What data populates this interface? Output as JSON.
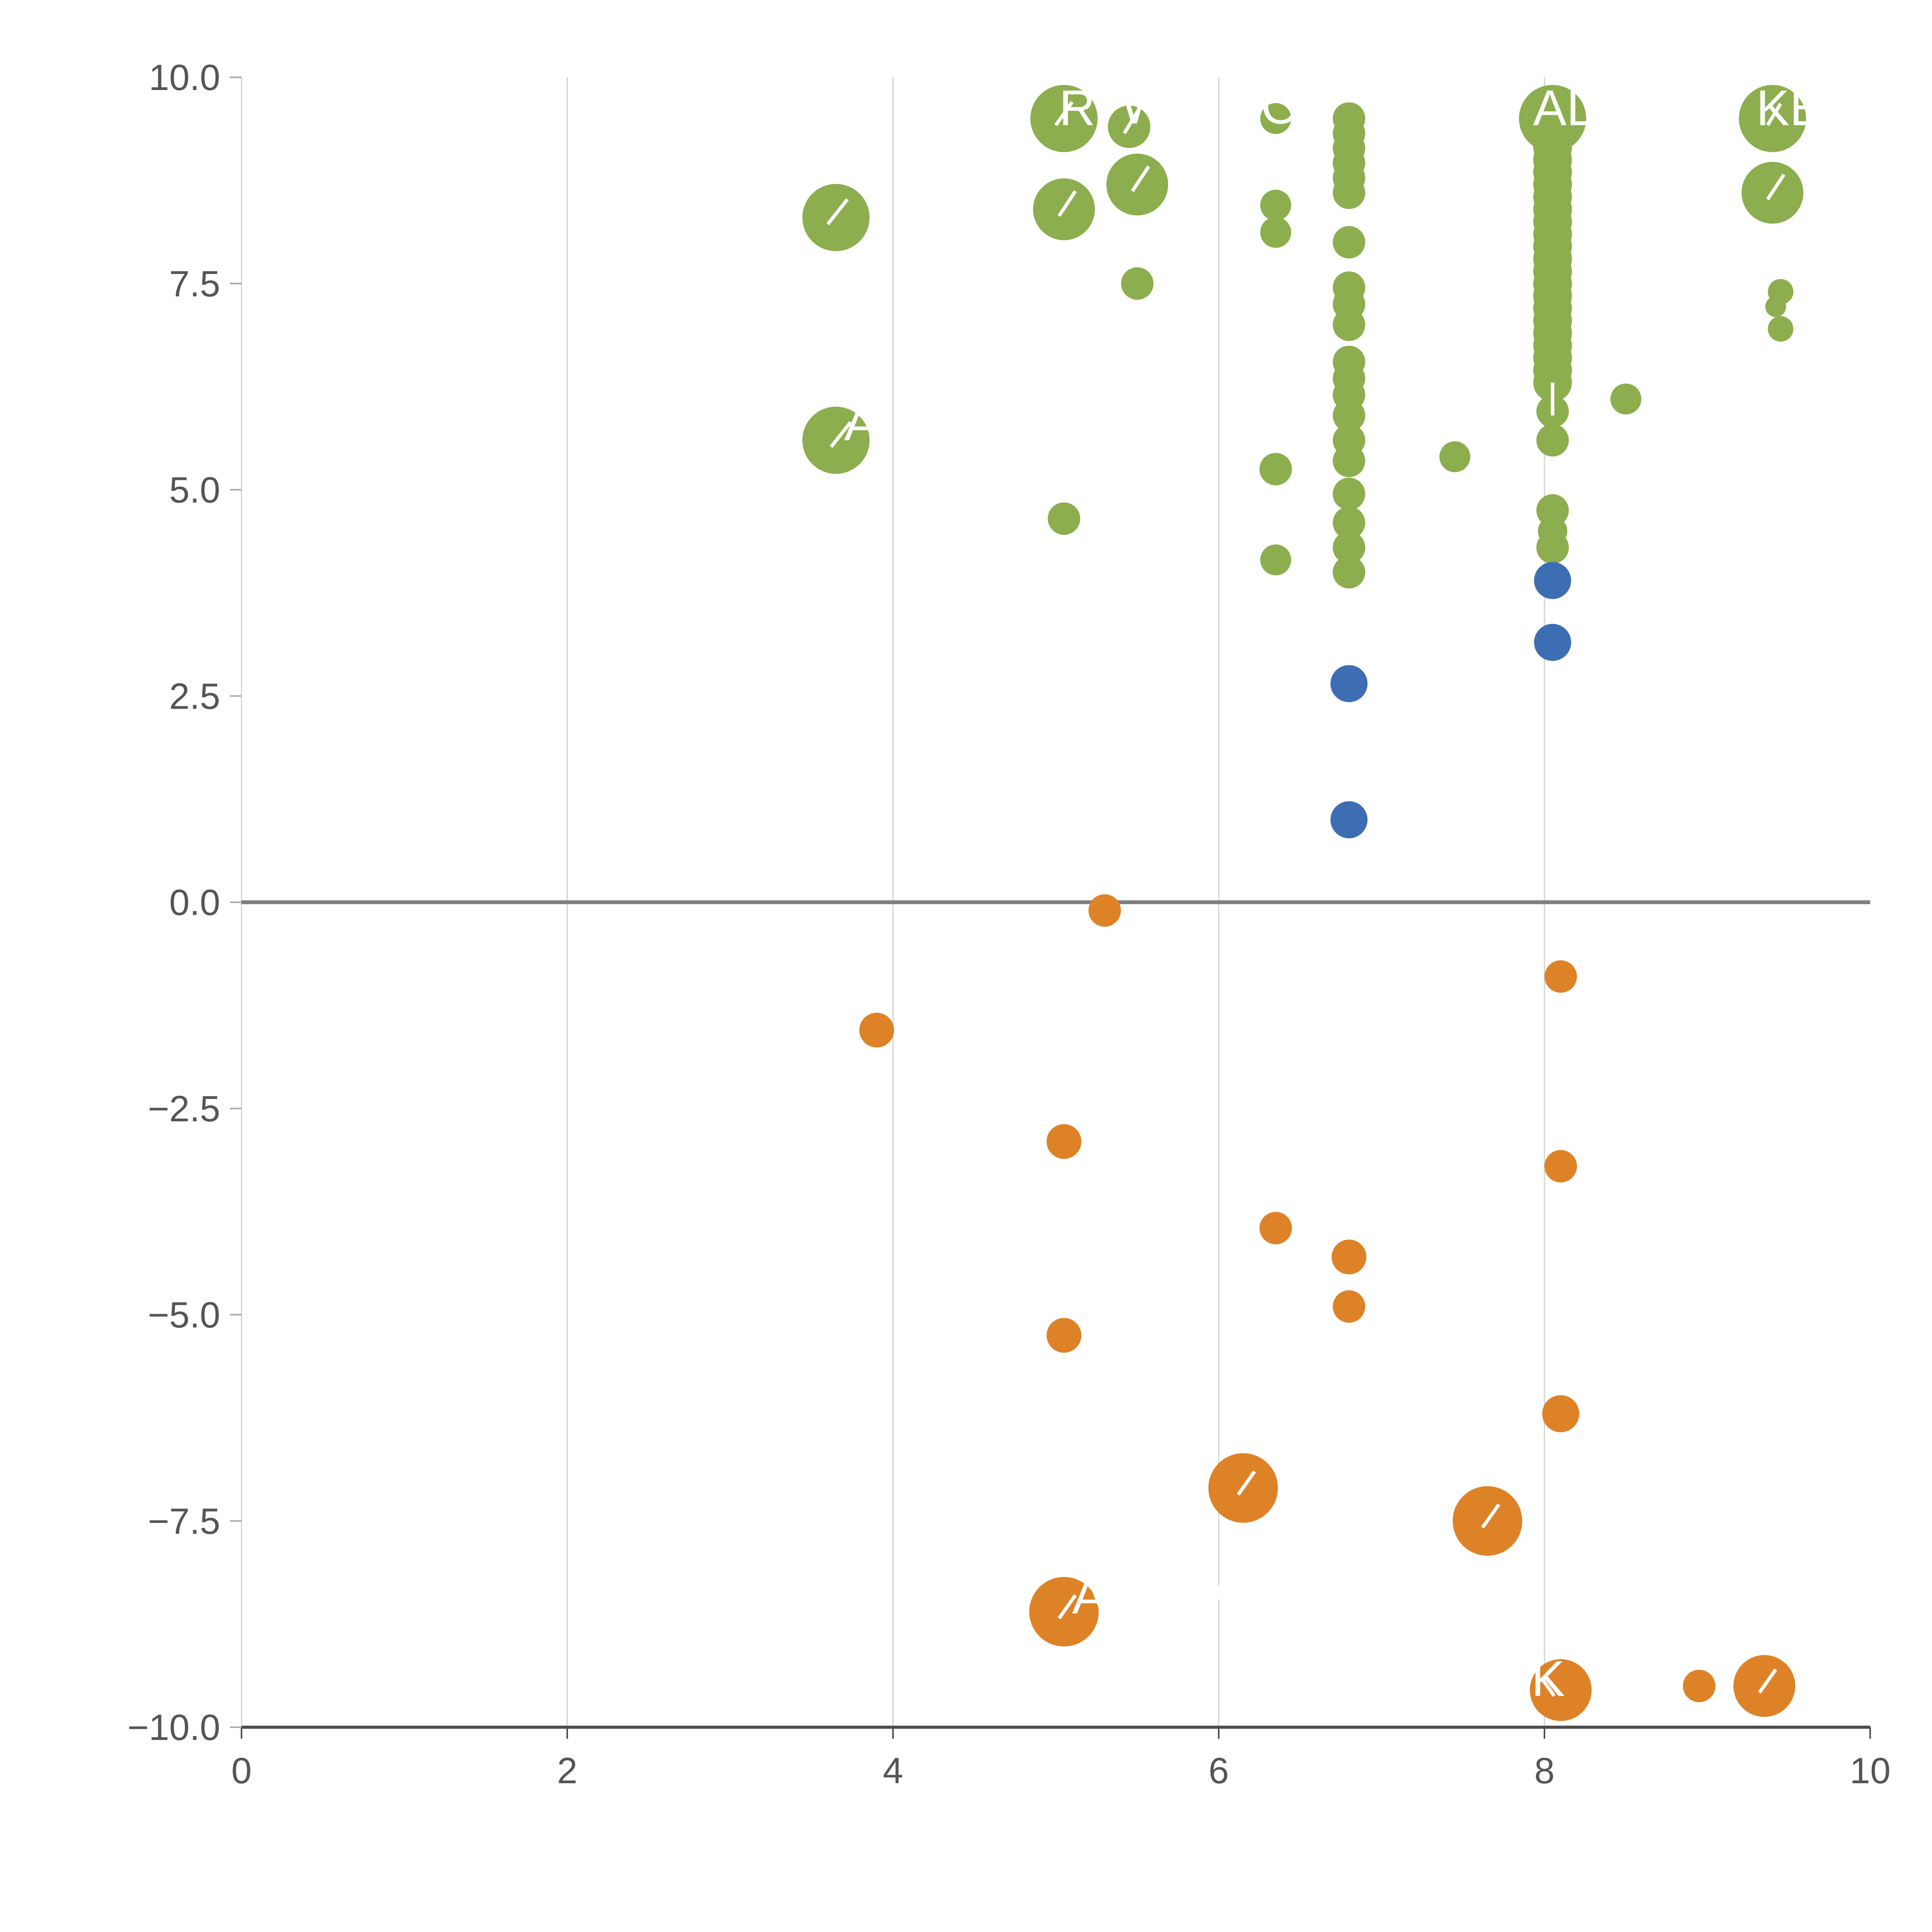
{
  "figure": {
    "background": "#ffffff"
  },
  "chart_data": {
    "type": "scatter",
    "title": "",
    "xlabel": "",
    "ylabel": "",
    "xlim": [
      0,
      10
    ],
    "ylim": [
      -10,
      10
    ],
    "grid": {
      "vertical_at": [
        0,
        2,
        4,
        6,
        8
      ],
      "color": "#d0d0d0"
    },
    "zero_line": {
      "y": 0,
      "color": "#808080",
      "width": 10
    },
    "axis": {
      "spine_color": "#4d4d4d",
      "tick_color": "#aaaaaa",
      "label_color": "#555555"
    },
    "x_ticks": {
      "values": [
        0,
        2,
        4,
        6,
        8,
        10
      ],
      "labels": [
        "0",
        "2",
        "4",
        "6",
        "8",
        "10"
      ]
    },
    "y_ticks": {
      "values": [
        10,
        7.5,
        5,
        2.5,
        0,
        -2.5,
        -5,
        -7.5,
        -10
      ],
      "labels": [
        "10.0",
        "7.5",
        "5.0",
        "2.5",
        "0.0",
        "−2.5",
        "−5.0",
        "−7.5",
        "−10.0"
      ]
    },
    "legend": "none",
    "series": [
      {
        "name": "green",
        "color": "#8cae4e",
        "points": [
          [
            3.65,
            8.3,
            87
          ],
          [
            3.65,
            5.6,
            87
          ],
          [
            5.05,
            9.5,
            87
          ],
          [
            5.05,
            8.4,
            80
          ],
          [
            5.45,
            9.4,
            55
          ],
          [
            5.5,
            8.7,
            80
          ],
          [
            5.5,
            7.5,
            42
          ],
          [
            5.05,
            4.65,
            42
          ],
          [
            6.35,
            9.5,
            40
          ],
          [
            6.35,
            8.45,
            40
          ],
          [
            6.35,
            8.12,
            40
          ],
          [
            6.35,
            5.25,
            42
          ],
          [
            6.35,
            4.15,
            40
          ],
          [
            6.8,
            9.5,
            42
          ],
          [
            6.8,
            9.32,
            42
          ],
          [
            6.8,
            9.14,
            42
          ],
          [
            6.8,
            8.96,
            42
          ],
          [
            6.8,
            8.78,
            42
          ],
          [
            6.8,
            8.6,
            42
          ],
          [
            6.8,
            8.0,
            42
          ],
          [
            6.8,
            7.45,
            42
          ],
          [
            6.8,
            7.25,
            42
          ],
          [
            6.8,
            7.0,
            42
          ],
          [
            6.8,
            6.55,
            42
          ],
          [
            6.8,
            6.35,
            42
          ],
          [
            6.8,
            6.15,
            42
          ],
          [
            6.8,
            5.9,
            42
          ],
          [
            6.8,
            5.6,
            42
          ],
          [
            6.8,
            5.35,
            42
          ],
          [
            6.8,
            4.95,
            42
          ],
          [
            6.8,
            4.6,
            42
          ],
          [
            6.8,
            4.3,
            42
          ],
          [
            6.8,
            4.0,
            42
          ],
          [
            7.45,
            5.4,
            40
          ],
          [
            8.05,
            9.5,
            87
          ],
          [
            8.05,
            9.3,
            50
          ],
          [
            8.05,
            9.15,
            50
          ],
          [
            8.05,
            9.0,
            50
          ],
          [
            8.05,
            8.85,
            50
          ],
          [
            8.05,
            8.7,
            50
          ],
          [
            8.05,
            8.55,
            50
          ],
          [
            8.05,
            8.4,
            50
          ],
          [
            8.05,
            8.25,
            50
          ],
          [
            8.05,
            8.1,
            50
          ],
          [
            8.05,
            7.95,
            50
          ],
          [
            8.05,
            7.8,
            50
          ],
          [
            8.05,
            7.65,
            50
          ],
          [
            8.05,
            7.5,
            50
          ],
          [
            8.05,
            7.35,
            50
          ],
          [
            8.05,
            7.2,
            50
          ],
          [
            8.05,
            7.05,
            50
          ],
          [
            8.05,
            6.9,
            50
          ],
          [
            8.05,
            6.75,
            50
          ],
          [
            8.05,
            6.6,
            50
          ],
          [
            8.05,
            6.45,
            50
          ],
          [
            8.05,
            6.3,
            50
          ],
          [
            8.05,
            5.95,
            42
          ],
          [
            8.05,
            5.6,
            42
          ],
          [
            8.05,
            4.75,
            42
          ],
          [
            8.05,
            4.5,
            38
          ],
          [
            8.05,
            4.3,
            42
          ],
          [
            8.5,
            6.1,
            40
          ],
          [
            9.4,
            9.5,
            87
          ],
          [
            9.4,
            8.6,
            80
          ],
          [
            9.45,
            7.4,
            33
          ],
          [
            9.42,
            7.22,
            27
          ],
          [
            9.45,
            6.95,
            33
          ]
        ]
      },
      {
        "name": "blue",
        "color": "#3d6eb4",
        "points": [
          [
            8.05,
            3.9,
            48
          ],
          [
            8.05,
            3.15,
            48
          ],
          [
            6.8,
            2.65,
            48
          ],
          [
            6.8,
            1.0,
            48
          ]
        ]
      },
      {
        "name": "orange",
        "color": "#de8227",
        "points": [
          [
            5.3,
            -0.1,
            42
          ],
          [
            8.1,
            -0.9,
            42
          ],
          [
            3.9,
            -1.55,
            45
          ],
          [
            5.05,
            -2.9,
            45
          ],
          [
            8.1,
            -3.2,
            42
          ],
          [
            6.35,
            -3.95,
            42
          ],
          [
            6.8,
            -4.3,
            45
          ],
          [
            6.8,
            -4.9,
            42
          ],
          [
            5.05,
            -5.25,
            45
          ],
          [
            8.1,
            -6.2,
            48
          ],
          [
            6.15,
            -7.1,
            90
          ],
          [
            7.65,
            -7.5,
            90
          ],
          [
            5.05,
            -8.6,
            90
          ],
          [
            8.1,
            -9.55,
            80
          ],
          [
            8.95,
            -9.5,
            42
          ],
          [
            9.35,
            -9.5,
            80
          ]
        ]
      }
    ],
    "annotations": [
      {
        "text": "R",
        "x": 5.02,
        "y": 9.42
      },
      {
        "text": "W",
        "x": 5.4,
        "y": 9.44
      },
      {
        "text": "O",
        "x": 6.26,
        "y": 9.44
      },
      {
        "text": "AD",
        "x": 7.93,
        "y": 9.42
      },
      {
        "text": "KE",
        "x": 9.3,
        "y": 9.42
      },
      {
        "text": "A",
        "x": 3.7,
        "y": 5.6
      },
      {
        "text": "A",
        "x": 5.1,
        "y": -8.62
      },
      {
        "text": "K",
        "x": 7.92,
        "y": -9.62
      }
    ],
    "leader_lines": [
      [
        3.6,
        8.22,
        3.72,
        8.52
      ],
      [
        3.62,
        5.52,
        3.74,
        5.82
      ],
      [
        5.0,
        9.42,
        5.1,
        9.7
      ],
      [
        5.02,
        8.32,
        5.12,
        8.62
      ],
      [
        5.42,
        9.32,
        5.5,
        9.58
      ],
      [
        5.47,
        8.62,
        5.57,
        8.92
      ],
      [
        9.37,
        9.42,
        9.45,
        9.68
      ],
      [
        9.37,
        8.52,
        9.47,
        8.82
      ],
      [
        8.05,
        6.3,
        8.05,
        5.9
      ],
      [
        6.12,
        -7.18,
        6.22,
        -6.9
      ],
      [
        7.62,
        -7.58,
        7.72,
        -7.3
      ],
      [
        5.02,
        -8.68,
        5.12,
        -8.4
      ],
      [
        5.99,
        -8.45,
        6.01,
        -8.28
      ],
      [
        8.06,
        -9.62,
        7.98,
        -9.4
      ],
      [
        9.32,
        -9.58,
        9.42,
        -9.3
      ]
    ]
  }
}
